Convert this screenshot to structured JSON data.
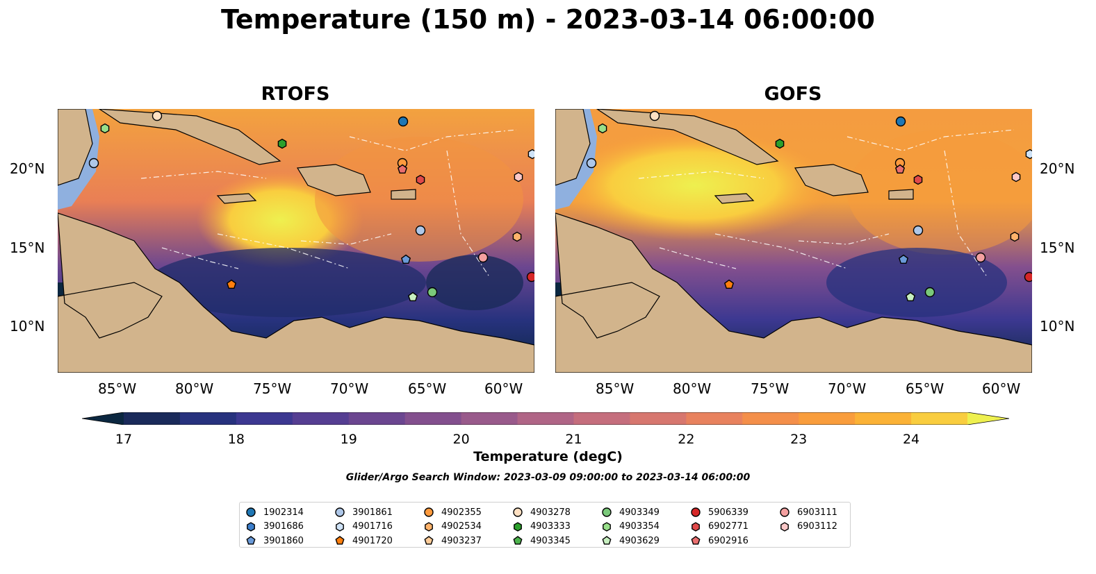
{
  "title": "Temperature (150 m) - 2023-03-14 06:00:00",
  "panels": [
    {
      "title": "RTOFS"
    },
    {
      "title": "GOFS"
    }
  ],
  "y_ticks": [
    "20°N",
    "15°N",
    "10°N"
  ],
  "x_ticks": [
    "85°W",
    "80°W",
    "75°W",
    "70°W",
    "65°W",
    "60°W"
  ],
  "colorbar": {
    "label": "Temperature (degC)",
    "ticks": [
      "17",
      "18",
      "19",
      "20",
      "21",
      "22",
      "23",
      "24"
    ],
    "min": 17,
    "max": 24.5,
    "colors": [
      "#0b2740",
      "#1a2a5a",
      "#27327e",
      "#3c3891",
      "#553e92",
      "#6b4690",
      "#834f8e",
      "#995a8b",
      "#b06586",
      "#c56e7d",
      "#d7776f",
      "#e8825e",
      "#f48f4a",
      "#f99d3c",
      "#fbb236",
      "#f9cd3f",
      "#eef04f"
    ]
  },
  "search_window": "Glider/Argo Search Window: 2023-03-09 09:00:00 to 2023-03-14 06:00:00",
  "legend": {
    "columns": [
      [
        {
          "id": "1902314",
          "shape": "circle",
          "color": "#1f77b4"
        },
        {
          "id": "3901686",
          "shape": "hexagon",
          "color": "#3d7fcc"
        },
        {
          "id": "3901860",
          "shape": "pentagon",
          "color": "#6a9ad8"
        }
      ],
      [
        {
          "id": "3901861",
          "shape": "circle",
          "color": "#aec7e8"
        },
        {
          "id": "4901716",
          "shape": "hexagon",
          "color": "#cfe3f7"
        },
        {
          "id": "4901720",
          "shape": "pentagon",
          "color": "#ff7f0e"
        }
      ],
      [
        {
          "id": "4902355",
          "shape": "circle",
          "color": "#ff9a3d"
        },
        {
          "id": "4902534",
          "shape": "hexagon",
          "color": "#ffb36b"
        },
        {
          "id": "4903237",
          "shape": "pentagon",
          "color": "#ffcc99"
        }
      ],
      [
        {
          "id": "4903278",
          "shape": "circle",
          "color": "#ffe0c2"
        },
        {
          "id": "4903333",
          "shape": "hexagon",
          "color": "#2ca02c"
        },
        {
          "id": "4903345",
          "shape": "pentagon",
          "color": "#4db34d"
        }
      ],
      [
        {
          "id": "4903349",
          "shape": "circle",
          "color": "#7ac97a"
        },
        {
          "id": "4903354",
          "shape": "hexagon",
          "color": "#98df8a"
        },
        {
          "id": "4903629",
          "shape": "pentagon",
          "color": "#c7efc0"
        }
      ],
      [
        {
          "id": "5906339",
          "shape": "circle",
          "color": "#d62728"
        },
        {
          "id": "6902771",
          "shape": "hexagon",
          "color": "#e0494a"
        },
        {
          "id": "6902916",
          "shape": "pentagon",
          "color": "#ea6f6f"
        }
      ],
      [
        {
          "id": "6903111",
          "shape": "circle",
          "color": "#f4a0a0"
        },
        {
          "id": "6903112",
          "shape": "hexagon",
          "color": "#fbc8c8"
        }
      ]
    ]
  }
}
